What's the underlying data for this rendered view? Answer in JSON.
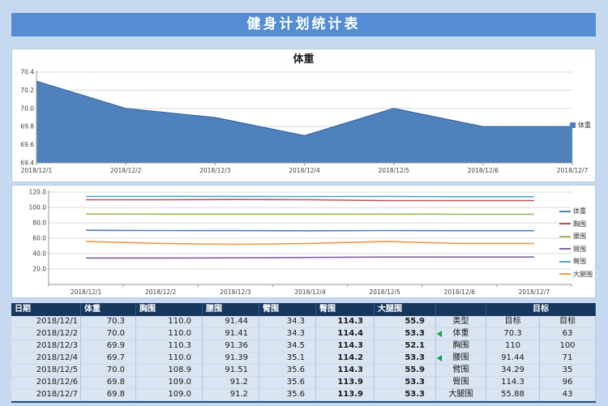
{
  "page": {
    "title": "健身计划统计表",
    "background_color": "#c6d9f0",
    "title_bar_color": "#548dd4",
    "table_header_color": "#17375d",
    "row_color": "#dbe5f1",
    "marker_color": "#00a650"
  },
  "chart_data": [
    {
      "id": "weight-area",
      "type": "area",
      "title": "体重",
      "categories": [
        "2018/12/1",
        "2018/12/2",
        "2018/12/3",
        "2018/12/4",
        "2018/12/5",
        "2018/12/6",
        "2018/12/7"
      ],
      "series": [
        {
          "name": "体重",
          "color": "#4f81bd",
          "values": [
            70.3,
            70.0,
            69.9,
            69.7,
            70.0,
            69.8,
            69.8
          ]
        }
      ],
      "ylim": [
        69.4,
        70.4
      ],
      "yticks": [
        70.4,
        70.2,
        70.0,
        69.8,
        69.6,
        69.4
      ],
      "ytick_labels": [
        "70.4",
        "70.2",
        "70.0",
        "69.8",
        "69.6",
        "69.4"
      ],
      "grid": true,
      "legend_position": "right"
    },
    {
      "id": "measurements-line",
      "type": "line",
      "title": "",
      "categories": [
        "2018/12/1",
        "2018/12/2",
        "2018/12/3",
        "2018/12/4",
        "2018/12/5",
        "2018/12/6",
        "2018/12/7"
      ],
      "series": [
        {
          "name": "体重",
          "color": "#4f81bd",
          "values": [
            70.3,
            70.0,
            69.9,
            69.7,
            70.0,
            69.8,
            69.8
          ]
        },
        {
          "name": "胸围",
          "color": "#c0504d",
          "values": [
            110.0,
            110.0,
            110.3,
            110.0,
            108.9,
            109.0,
            109.0
          ]
        },
        {
          "name": "腰围",
          "color": "#9bbb59",
          "values": [
            91.44,
            91.41,
            91.36,
            91.39,
            91.51,
            91.2,
            91.2
          ]
        },
        {
          "name": "臂围",
          "color": "#8064a2",
          "values": [
            34.3,
            34.3,
            34.5,
            35.1,
            35.6,
            35.6,
            35.6
          ]
        },
        {
          "name": "臀围",
          "color": "#4bacc6",
          "values": [
            114.3,
            114.4,
            114.3,
            114.2,
            114.3,
            113.9,
            113.9
          ]
        },
        {
          "name": "大腿围",
          "color": "#f79646",
          "values": [
            55.9,
            53.3,
            52.1,
            53.3,
            55.9,
            53.3,
            53.3
          ]
        }
      ],
      "ylim": [
        0,
        120
      ],
      "yticks": [
        120,
        100,
        80,
        60,
        40,
        20
      ],
      "ytick_labels": [
        "120.0",
        "100.0",
        "80.0",
        "60.0",
        "40.0",
        "20.0"
      ],
      "grid": true,
      "legend_position": "right"
    }
  ],
  "table": {
    "headers": [
      "日期",
      "体重",
      "胸围",
      "腰围",
      "臂围",
      "臀围",
      "大腿围",
      "",
      "目标"
    ],
    "rows": [
      {
        "date": "2018/12/1",
        "values": [
          "70.3",
          "110.0",
          "91.44",
          "34.3",
          "114.3",
          "55.9"
        ],
        "type": "类型",
        "goal": "目标",
        "target": "目标",
        "marker": false
      },
      {
        "date": "2018/12/2",
        "values": [
          "70.0",
          "110.0",
          "91.41",
          "34.3",
          "114.4",
          "53.3"
        ],
        "type": "体重",
        "goal": "70.3",
        "target": "63",
        "marker": true
      },
      {
        "date": "2018/12/3",
        "values": [
          "69.9",
          "110.3",
          "91.36",
          "34.5",
          "114.3",
          "52.1"
        ],
        "type": "胸围",
        "goal": "110",
        "target": "100",
        "marker": false
      },
      {
        "date": "2018/12/4",
        "values": [
          "69.7",
          "110.0",
          "91.39",
          "35.1",
          "114.2",
          "53.3"
        ],
        "type": "腰围",
        "goal": "91.44",
        "target": "71",
        "marker": true
      },
      {
        "date": "2018/12/5",
        "values": [
          "70.0",
          "108.9",
          "91.51",
          "35.6",
          "114.3",
          "55.9"
        ],
        "type": "臂围",
        "goal": "34.29",
        "target": "35",
        "marker": false
      },
      {
        "date": "2018/12/6",
        "values": [
          "69.8",
          "109.0",
          "91.2",
          "35.6",
          "113.9",
          "53.3"
        ],
        "type": "臀围",
        "goal": "114.3",
        "target": "96",
        "marker": false
      },
      {
        "date": "2018/12/7",
        "values": [
          "69.8",
          "109.0",
          "91.2",
          "35.6",
          "113.9",
          "53.3"
        ],
        "type": "大腿围",
        "goal": "55.88",
        "target": "43",
        "marker": false
      }
    ]
  }
}
